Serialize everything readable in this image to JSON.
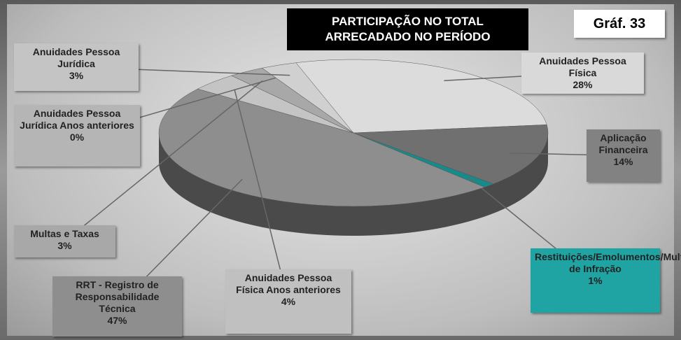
{
  "chart_data": {
    "type": "pie",
    "title": "PARTICIPAÇÃO NO TOTAL ARRECADADO NO PERÍODO",
    "annotation": "Gráf. 33",
    "categories": [
      "Anuidades Pessoa Física",
      "Aplicação Financeira",
      "Restituições/Emolumentos/Multas de Infração",
      "RRT - Registro de Responsabilidade Técnica",
      "Anuidades Pessoa Física Anos anteriores",
      "Multas e Taxas",
      "Anuidades Pessoa Jurídica Anos anteriores",
      "Anuidades Pessoa Jurídica"
    ],
    "values": [
      28,
      14,
      1,
      47,
      4,
      3,
      0,
      3
    ],
    "value_labels": [
      "28%",
      "14%",
      "1%",
      "47%",
      "4%",
      "3%",
      "0%",
      "3%"
    ],
    "colors": [
      "#dcdcdc",
      "#707070",
      "#178a8a",
      "#8e8e8e",
      "#c4c4c4",
      "#a8a8a8",
      "#808080",
      "#d0d0d0"
    ]
  }
}
